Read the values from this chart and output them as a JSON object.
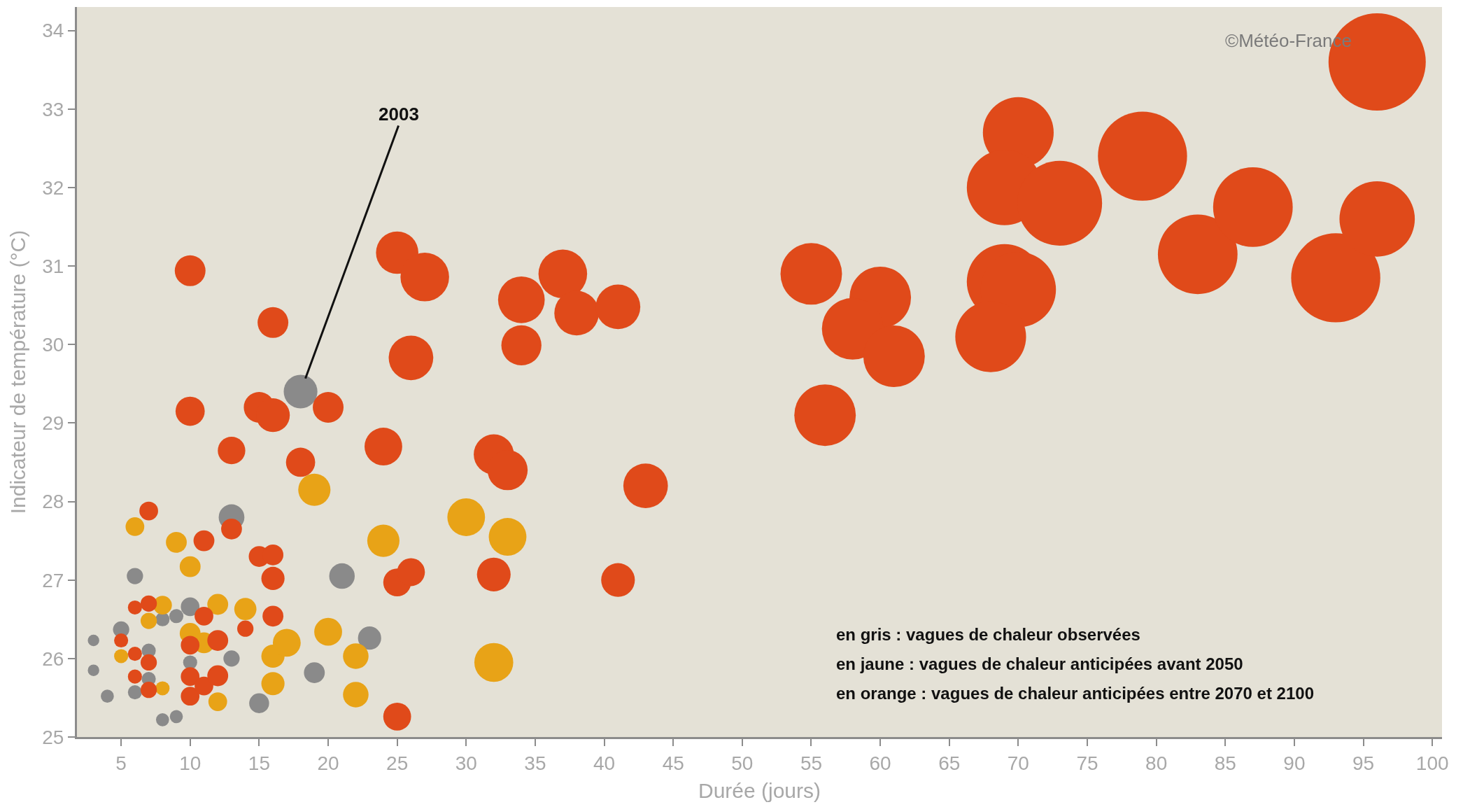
{
  "chart_data": {
    "type": "bubble",
    "xlabel": "Durée (jours)",
    "ylabel": "Indicateur de température (°C)",
    "xlim": [
      1.8,
      100.7
    ],
    "ylim": [
      25,
      34.3
    ],
    "xticks": [
      5,
      10,
      15,
      20,
      25,
      30,
      35,
      40,
      45,
      50,
      55,
      60,
      65,
      70,
      75,
      80,
      85,
      90,
      95,
      100
    ],
    "yticks": [
      25,
      26,
      27,
      28,
      29,
      30,
      31,
      32,
      33,
      34
    ],
    "grid": false,
    "marker": "circle",
    "annotations": [
      {
        "text": "2003",
        "x": 18,
        "y": 29.4
      },
      "©Météo-France",
      "en gris : vagues de chaleur observées",
      "en jaune : vagues de chaleur anticipées avant 2050",
      "en orange : vagues de chaleur anticipées entre 2070 et 2100"
    ],
    "series": [
      {
        "color": "#8a8a8a",
        "x": [
          3,
          3,
          4,
          5,
          6,
          6,
          7,
          7,
          8,
          8,
          9,
          9,
          10,
          10,
          13,
          13,
          15,
          18,
          19,
          21,
          23
        ],
        "values": [
          26.23,
          25.85,
          25.52,
          26.37,
          27.05,
          25.57,
          26.1,
          25.74,
          26.5,
          25.22,
          26.54,
          25.26,
          26.66,
          25.95,
          27.8,
          26.0,
          25.43,
          29.4,
          25.82,
          27.05,
          26.26
        ],
        "sizes": [
          0.014,
          0.014,
          0.018,
          0.028,
          0.028,
          0.021,
          0.021,
          0.021,
          0.021,
          0.018,
          0.021,
          0.018,
          0.037,
          0.021,
          0.07,
          0.028,
          0.042,
          0.12,
          0.046,
          0.069,
          0.057
        ]
      },
      {
        "color": "#e8a317",
        "x": [
          5,
          6,
          7,
          8,
          8,
          9,
          10,
          10,
          11,
          12,
          12,
          14,
          16,
          16,
          17,
          19,
          20,
          22,
          22,
          24,
          30,
          32,
          33
        ],
        "values": [
          26.03,
          27.68,
          26.48,
          26.68,
          25.62,
          27.48,
          27.17,
          26.32,
          26.2,
          26.69,
          25.45,
          26.63,
          26.03,
          25.68,
          26.2,
          28.15,
          26.34,
          26.03,
          25.54,
          27.5,
          27.8,
          25.95,
          27.55
        ],
        "sizes": [
          0.021,
          0.037,
          0.028,
          0.037,
          0.021,
          0.046,
          0.046,
          0.046,
          0.046,
          0.046,
          0.037,
          0.052,
          0.057,
          0.057,
          0.082,
          0.11,
          0.082,
          0.069,
          0.069,
          0.11,
          0.15,
          0.16,
          0.15
        ]
      },
      {
        "color": "#e04a1a",
        "x": [
          5,
          6,
          6,
          6,
          7,
          7,
          7,
          7,
          10,
          10,
          10,
          11,
          11,
          11,
          12,
          12,
          13,
          14,
          15,
          16,
          16,
          16,
          25,
          26,
          25,
          10,
          16,
          25,
          27,
          26,
          34,
          37,
          38,
          41,
          34,
          10,
          15,
          16,
          20,
          13,
          18,
          24,
          32,
          33,
          43,
          32,
          41,
          55,
          60,
          58,
          61,
          56,
          70,
          69,
          73,
          79,
          69,
          70,
          68,
          83,
          87,
          93,
          96,
          96
        ],
        "values": [
          26.23,
          26.65,
          26.06,
          25.77,
          27.88,
          26.7,
          25.95,
          25.6,
          26.17,
          25.77,
          25.52,
          27.5,
          26.54,
          25.65,
          26.23,
          25.78,
          27.65,
          26.38,
          27.3,
          27.32,
          27.02,
          26.54,
          26.97,
          27.1,
          25.26,
          30.94,
          30.28,
          31.17,
          30.86,
          29.83,
          30.57,
          30.9,
          30.4,
          30.48,
          29.99,
          29.15,
          29.2,
          29.1,
          29.2,
          28.65,
          28.5,
          28.7,
          28.6,
          28.4,
          28.2,
          27.07,
          27.0,
          30.9,
          30.6,
          30.2,
          29.85,
          29.1,
          32.7,
          32.0,
          31.8,
          32.4,
          30.8,
          30.7,
          30.1,
          31.15,
          31.75,
          30.85,
          31.6,
          33.6
        ],
        "sizes": [
          0.021,
          0.021,
          0.021,
          0.021,
          0.037,
          0.028,
          0.028,
          0.028,
          0.037,
          0.037,
          0.037,
          0.046,
          0.037,
          0.037,
          0.046,
          0.046,
          0.046,
          0.028,
          0.046,
          0.046,
          0.057,
          0.046,
          0.082,
          0.082,
          0.082,
          0.1,
          0.1,
          0.19,
          0.25,
          0.21,
          0.23,
          0.25,
          0.21,
          0.21,
          0.17,
          0.09,
          0.1,
          0.12,
          0.1,
          0.08,
          0.09,
          0.15,
          0.17,
          0.17,
          0.21,
          0.12,
          0.12,
          0.4,
          0.4,
          0.4,
          0.4,
          0.4,
          0.53,
          0.6,
          0.76,
          0.84,
          0.6,
          0.6,
          0.53,
          0.67,
          0.67,
          0.84,
          0.6,
          1
        ]
      }
    ]
  }
}
